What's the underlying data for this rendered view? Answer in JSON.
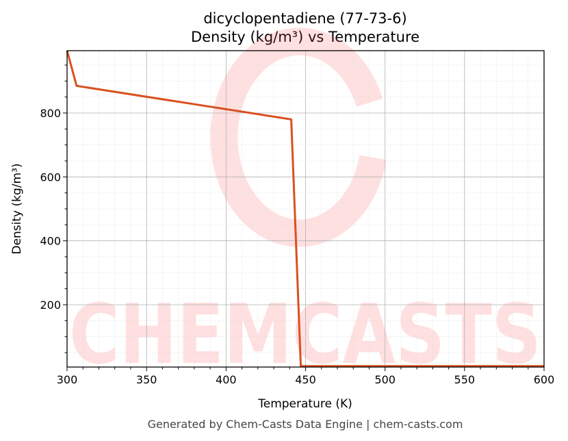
{
  "chart_data": {
    "type": "line",
    "title": "dicyclopentadiene (77-73-6)",
    "subtitle": "Density (kg/m³) vs Temperature",
    "xlabel": "Temperature (K)",
    "ylabel": "Density (kg/m³)",
    "xlim": [
      300,
      600
    ],
    "ylim": [
      5,
      995
    ],
    "xticks": [
      300,
      350,
      400,
      450,
      500,
      550,
      600
    ],
    "yticks": [
      200,
      400,
      600,
      800
    ],
    "grid": true,
    "series": [
      {
        "name": "Density",
        "color": "#d9501e",
        "x": [
          300,
          306,
          441,
          447,
          600
        ],
        "y": [
          995,
          885,
          780,
          8,
          8
        ]
      }
    ]
  },
  "watermark": "CHEMCASTS",
  "footer": "Generated by Chem-Casts Data Engine | chem-casts.com"
}
